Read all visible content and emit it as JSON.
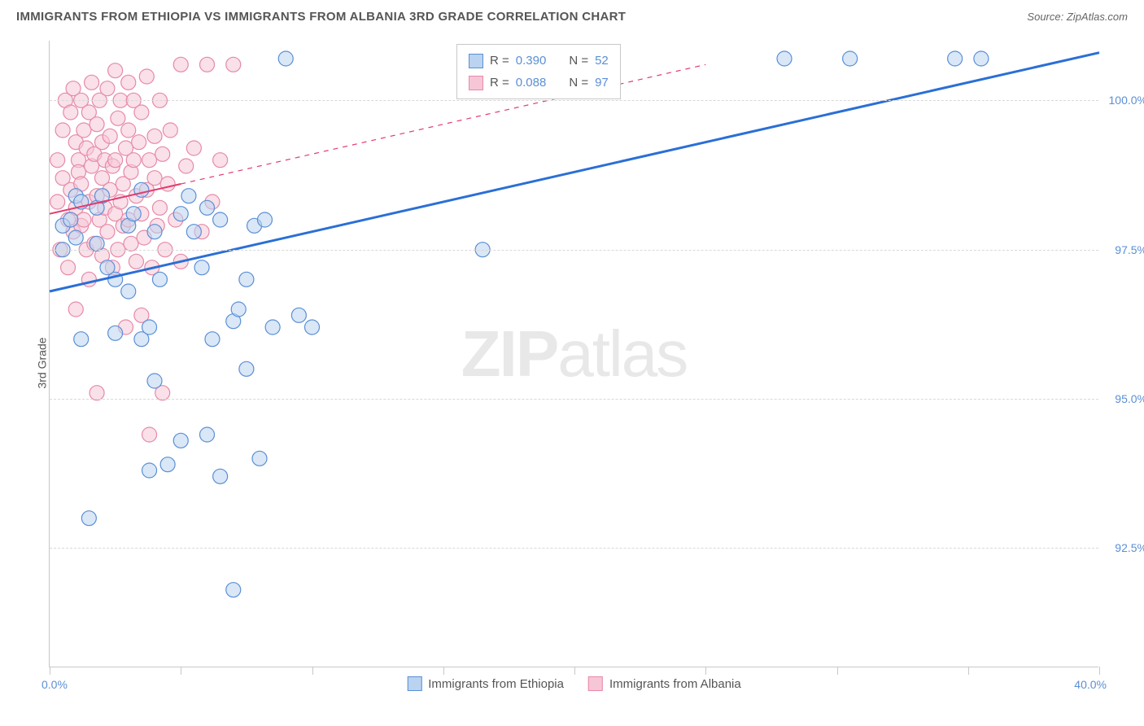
{
  "header": {
    "title": "IMMIGRANTS FROM ETHIOPIA VS IMMIGRANTS FROM ALBANIA 3RD GRADE CORRELATION CHART",
    "source_label": "Source:",
    "source_value": "ZipAtlas.com"
  },
  "axes": {
    "y_title": "3rd Grade",
    "x_min_label": "0.0%",
    "x_max_label": "40.0%",
    "y_ticks": [
      {
        "v": 92.5,
        "label": "92.5%"
      },
      {
        "v": 95.0,
        "label": "95.0%"
      },
      {
        "v": 97.5,
        "label": "97.5%"
      },
      {
        "v": 100.0,
        "label": "100.0%"
      }
    ],
    "x_ticks_pct": [
      0,
      12.5,
      25,
      37.5,
      50,
      62.5,
      75,
      87.5,
      100
    ]
  },
  "chart": {
    "type": "scatter",
    "xlim": [
      0,
      40
    ],
    "ylim": [
      90.5,
      101.0
    ],
    "background_color": "#ffffff",
    "grid_color": "#d8d8d8",
    "marker_radius": 9,
    "marker_stroke_width": 1.2,
    "series": [
      {
        "key": "ethiopia",
        "label": "Immigrants from Ethiopia",
        "fill": "#b9d3f0",
        "stroke": "#5b8fd6",
        "fill_opacity": 0.55,
        "R": "0.390",
        "N": "52",
        "trend": {
          "x1": 0,
          "y1": 96.8,
          "x2": 40,
          "y2": 100.8,
          "solid_end_x": 40,
          "color": "#2a6fd6",
          "width": 3
        },
        "points": [
          [
            0.5,
            97.9
          ],
          [
            0.5,
            97.5
          ],
          [
            0.8,
            98.0
          ],
          [
            1.0,
            98.4
          ],
          [
            1.0,
            97.7
          ],
          [
            1.2,
            96.0
          ],
          [
            1.2,
            98.3
          ],
          [
            1.5,
            93.0
          ],
          [
            1.8,
            98.2
          ],
          [
            1.8,
            97.6
          ],
          [
            2.0,
            98.4
          ],
          [
            2.2,
            97.2
          ],
          [
            2.5,
            97.0
          ],
          [
            2.5,
            96.1
          ],
          [
            3.0,
            97.9
          ],
          [
            3.0,
            96.8
          ],
          [
            3.2,
            98.1
          ],
          [
            3.5,
            98.5
          ],
          [
            3.5,
            96.0
          ],
          [
            3.8,
            96.2
          ],
          [
            3.8,
            93.8
          ],
          [
            4.0,
            97.8
          ],
          [
            4.0,
            95.3
          ],
          [
            4.2,
            97.0
          ],
          [
            4.5,
            93.9
          ],
          [
            5.0,
            94.3
          ],
          [
            5.0,
            98.1
          ],
          [
            5.3,
            98.4
          ],
          [
            5.5,
            97.8
          ],
          [
            5.8,
            97.2
          ],
          [
            6.0,
            94.4
          ],
          [
            6.0,
            98.2
          ],
          [
            6.2,
            96.0
          ],
          [
            6.5,
            93.7
          ],
          [
            6.5,
            98.0
          ],
          [
            7.0,
            96.3
          ],
          [
            7.0,
            91.8
          ],
          [
            7.2,
            96.5
          ],
          [
            7.5,
            97.0
          ],
          [
            7.5,
            95.5
          ],
          [
            7.8,
            97.9
          ],
          [
            8.0,
            94.0
          ],
          [
            8.2,
            98.0
          ],
          [
            8.5,
            96.2
          ],
          [
            9.0,
            100.7
          ],
          [
            9.5,
            96.4
          ],
          [
            10.0,
            96.2
          ],
          [
            16.5,
            97.5
          ],
          [
            28.0,
            100.7
          ],
          [
            30.5,
            100.7
          ],
          [
            34.5,
            100.7
          ],
          [
            35.5,
            100.7
          ]
        ]
      },
      {
        "key": "albania",
        "label": "Immigrants from Albania",
        "fill": "#f6c6d6",
        "stroke": "#e68aa8",
        "fill_opacity": 0.55,
        "R": "0.088",
        "N": "97",
        "trend": {
          "x1": 0,
          "y1": 98.1,
          "x2": 25,
          "y2": 100.6,
          "solid_end_x": 5,
          "color": "#e23b6e",
          "width": 2
        },
        "points": [
          [
            0.3,
            98.3
          ],
          [
            0.3,
            99.0
          ],
          [
            0.4,
            97.5
          ],
          [
            0.5,
            99.5
          ],
          [
            0.5,
            98.7
          ],
          [
            0.6,
            100.0
          ],
          [
            0.7,
            98.0
          ],
          [
            0.7,
            97.2
          ],
          [
            0.8,
            99.8
          ],
          [
            0.8,
            98.5
          ],
          [
            0.9,
            100.2
          ],
          [
            0.9,
            97.8
          ],
          [
            1.0,
            99.3
          ],
          [
            1.0,
            98.2
          ],
          [
            1.0,
            96.5
          ],
          [
            1.1,
            99.0
          ],
          [
            1.1,
            98.8
          ],
          [
            1.2,
            100.0
          ],
          [
            1.2,
            97.9
          ],
          [
            1.2,
            98.6
          ],
          [
            1.3,
            99.5
          ],
          [
            1.3,
            98.0
          ],
          [
            1.4,
            97.5
          ],
          [
            1.4,
            99.2
          ],
          [
            1.5,
            99.8
          ],
          [
            1.5,
            98.3
          ],
          [
            1.5,
            97.0
          ],
          [
            1.6,
            100.3
          ],
          [
            1.6,
            98.9
          ],
          [
            1.7,
            99.1
          ],
          [
            1.7,
            97.6
          ],
          [
            1.8,
            98.4
          ],
          [
            1.8,
            99.6
          ],
          [
            1.8,
            95.1
          ],
          [
            1.9,
            100.0
          ],
          [
            1.9,
            98.0
          ],
          [
            2.0,
            99.3
          ],
          [
            2.0,
            97.4
          ],
          [
            2.0,
            98.7
          ],
          [
            2.1,
            99.0
          ],
          [
            2.1,
            98.2
          ],
          [
            2.2,
            100.2
          ],
          [
            2.2,
            97.8
          ],
          [
            2.3,
            98.5
          ],
          [
            2.3,
            99.4
          ],
          [
            2.4,
            97.2
          ],
          [
            2.4,
            98.9
          ],
          [
            2.5,
            100.5
          ],
          [
            2.5,
            98.1
          ],
          [
            2.5,
            99.0
          ],
          [
            2.6,
            97.5
          ],
          [
            2.6,
            99.7
          ],
          [
            2.7,
            98.3
          ],
          [
            2.7,
            100.0
          ],
          [
            2.8,
            97.9
          ],
          [
            2.8,
            98.6
          ],
          [
            2.9,
            99.2
          ],
          [
            2.9,
            96.2
          ],
          [
            3.0,
            100.3
          ],
          [
            3.0,
            98.0
          ],
          [
            3.0,
            99.5
          ],
          [
            3.1,
            97.6
          ],
          [
            3.1,
            98.8
          ],
          [
            3.2,
            99.0
          ],
          [
            3.2,
            100.0
          ],
          [
            3.3,
            97.3
          ],
          [
            3.3,
            98.4
          ],
          [
            3.4,
            99.3
          ],
          [
            3.5,
            98.1
          ],
          [
            3.5,
            96.4
          ],
          [
            3.5,
            99.8
          ],
          [
            3.6,
            97.7
          ],
          [
            3.7,
            98.5
          ],
          [
            3.7,
            100.4
          ],
          [
            3.8,
            99.0
          ],
          [
            3.8,
            94.4
          ],
          [
            3.9,
            97.2
          ],
          [
            4.0,
            98.7
          ],
          [
            4.0,
            99.4
          ],
          [
            4.1,
            97.9
          ],
          [
            4.2,
            100.0
          ],
          [
            4.2,
            98.2
          ],
          [
            4.3,
            99.1
          ],
          [
            4.3,
            95.1
          ],
          [
            4.4,
            97.5
          ],
          [
            4.5,
            98.6
          ],
          [
            4.6,
            99.5
          ],
          [
            4.8,
            98.0
          ],
          [
            5.0,
            100.6
          ],
          [
            5.0,
            97.3
          ],
          [
            5.2,
            98.9
          ],
          [
            5.5,
            99.2
          ],
          [
            5.8,
            97.8
          ],
          [
            6.0,
            100.6
          ],
          [
            6.2,
            98.3
          ],
          [
            6.5,
            99.0
          ],
          [
            7.0,
            100.6
          ]
        ]
      }
    ]
  },
  "watermark": {
    "zip": "ZIP",
    "atlas": "atlas"
  },
  "stats_legend": {
    "r_label": "R =",
    "n_label": "N ="
  }
}
